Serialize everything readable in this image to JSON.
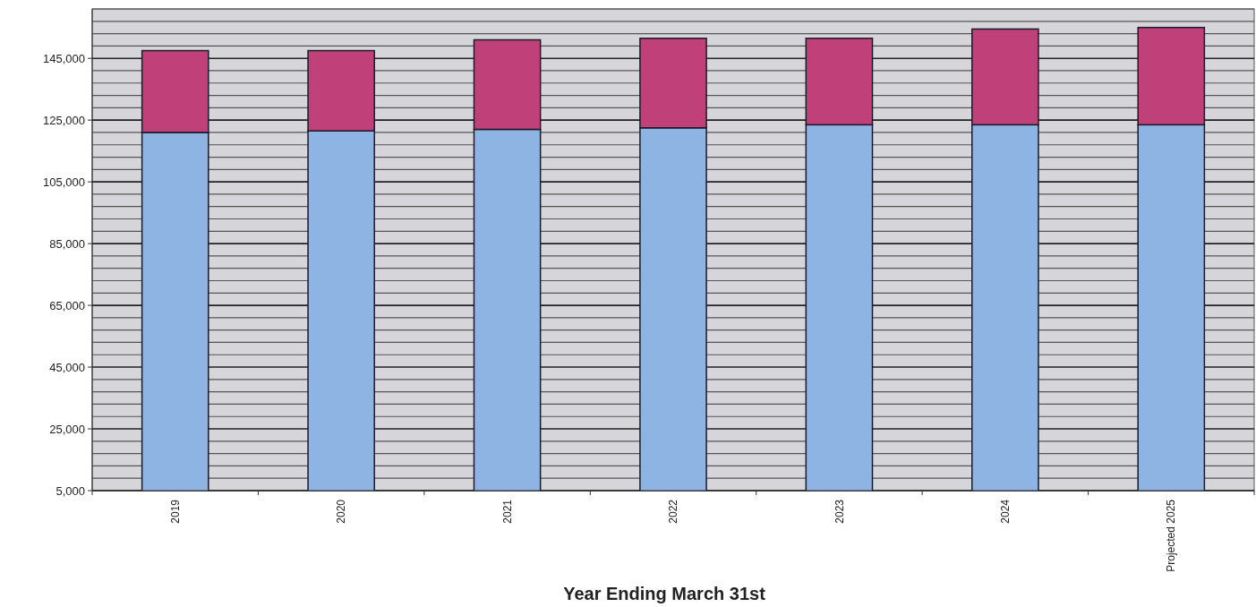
{
  "chart_data": {
    "type": "bar",
    "stacked": true,
    "xlabel": "Year Ending March 31st",
    "categories": [
      "2019",
      "2020",
      "2021",
      "2022",
      "2023",
      "2024",
      "Projected 2025"
    ],
    "series": [
      {
        "color": "#8db4e2",
        "values": [
          121000,
          121500,
          122000,
          122500,
          123500,
          123500,
          123500
        ]
      },
      {
        "color": "#c0407a",
        "values": [
          26500,
          26000,
          29000,
          29000,
          28000,
          31000,
          31500
        ]
      }
    ],
    "ylim": [
      5000,
      161000
    ],
    "yticks": [
      {
        "value": 5000,
        "label": "5,000"
      },
      {
        "value": 9000,
        "label": null
      },
      {
        "value": 13000,
        "label": null
      },
      {
        "value": 17000,
        "label": null
      },
      {
        "value": 21000,
        "label": null
      },
      {
        "value": 25000,
        "label": "25,000"
      },
      {
        "value": 29000,
        "label": null
      },
      {
        "value": 33000,
        "label": null
      },
      {
        "value": 37000,
        "label": null
      },
      {
        "value": 41000,
        "label": null
      },
      {
        "value": 45000,
        "label": "45,000"
      },
      {
        "value": 49000,
        "label": null
      },
      {
        "value": 53000,
        "label": null
      },
      {
        "value": 57000,
        "label": null
      },
      {
        "value": 61000,
        "label": null
      },
      {
        "value": 65000,
        "label": "65,000"
      },
      {
        "value": 69000,
        "label": null
      },
      {
        "value": 73000,
        "label": null
      },
      {
        "value": 77000,
        "label": null
      },
      {
        "value": 81000,
        "label": null
      },
      {
        "value": 85000,
        "label": "85,000"
      },
      {
        "value": 89000,
        "label": null
      },
      {
        "value": 93000,
        "label": null
      },
      {
        "value": 97000,
        "label": null
      },
      {
        "value": 101000,
        "label": null
      },
      {
        "value": 105000,
        "label": "105,000"
      },
      {
        "value": 109000,
        "label": null
      },
      {
        "value": 113000,
        "label": null
      },
      {
        "value": 117000,
        "label": null
      },
      {
        "value": 121000,
        "label": null
      },
      {
        "value": 125000,
        "label": "125,000"
      },
      {
        "value": 129000,
        "label": null
      },
      {
        "value": 133000,
        "label": null
      },
      {
        "value": 137000,
        "label": null
      },
      {
        "value": 141000,
        "label": null
      },
      {
        "value": 145000,
        "label": "145,000"
      },
      {
        "value": 149000,
        "label": null
      },
      {
        "value": 153000,
        "label": null
      },
      {
        "value": 157000,
        "label": null
      },
      {
        "value": 161000,
        "label": null
      }
    ],
    "grid": "y"
  }
}
